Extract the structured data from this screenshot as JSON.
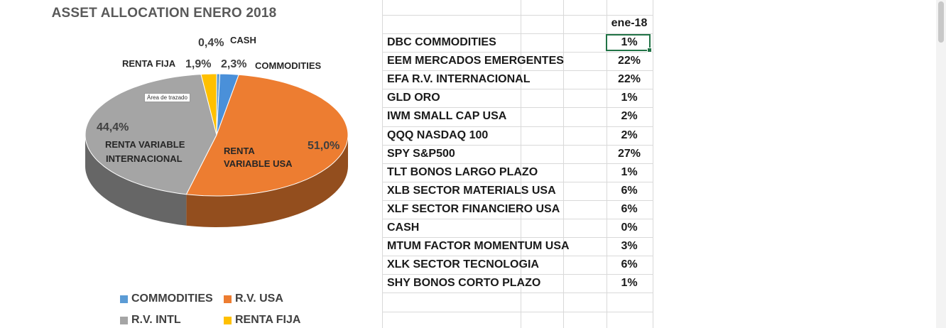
{
  "chart_data": {
    "type": "pie",
    "title": "ASSET ALLOCATION ENERO 2018",
    "slices": [
      {
        "label": "CASH",
        "value": 0.4,
        "display": "0,4%",
        "color": "#5b9bd5"
      },
      {
        "label": "COMMODITIES",
        "value": 2.3,
        "display": "2,3%",
        "color": "#4a90d9"
      },
      {
        "label": "RENTA VARIABLE USA",
        "value": 51.0,
        "display": "51,0%",
        "color": "#ed7d31"
      },
      {
        "label": "RENTA VARIABLE INTERNACIONAL",
        "value": 44.4,
        "display": "44,4%",
        "color": "#a5a5a5"
      },
      {
        "label": "RENTA FIJA",
        "value": 1.9,
        "display": "1,9%",
        "color": "#ffc000"
      }
    ],
    "slice_labels": {
      "cash": "CASH",
      "commodities": "COMMODITIES",
      "rv_usa_1": "RENTA",
      "rv_usa_2": "VARIABLE USA",
      "rv_intl_1": "RENTA VARIABLE",
      "rv_intl_2": "INTERNACIONAL",
      "renta_fija": "RENTA FIJA"
    },
    "legend": [
      {
        "name": "COMMODITIES",
        "color": "#5b9bd5"
      },
      {
        "name": "R.V. USA",
        "color": "#ed7d31"
      },
      {
        "name": "R.V. INTL",
        "color": "#a5a5a5"
      },
      {
        "name": "RENTA FIJA",
        "color": "#ffc000"
      }
    ],
    "legend_position": "bottom",
    "style": "3d-pie"
  },
  "tooltip": "Área de trazado",
  "sheet": {
    "column_header": "ene-18",
    "rows": [
      {
        "label": "DBC COMMODITIES",
        "value": "1%"
      },
      {
        "label": "EEM MERCADOS EMERGENTES",
        "value": "22%"
      },
      {
        "label": "EFA R.V. INTERNACIONAL",
        "value": "22%"
      },
      {
        "label": "GLD ORO",
        "value": "1%"
      },
      {
        "label": "IWM SMALL CAP USA",
        "value": "2%"
      },
      {
        "label": "QQQ NASDAQ 100",
        "value": "2%"
      },
      {
        "label": "SPY  S&P500",
        "value": "27%"
      },
      {
        "label": "TLT BONOS LARGO PLAZO",
        "value": "1%"
      },
      {
        "label": "XLB SECTOR MATERIALS USA",
        "value": "6%"
      },
      {
        "label": "XLF SECTOR FINANCIERO USA",
        "value": "6%"
      },
      {
        "label": "CASH",
        "value": "0%"
      },
      {
        "label": "MTUM FACTOR MOMENTUM USA",
        "value": "3%"
      },
      {
        "label": "XLK SECTOR TECNOLOGIA",
        "value": "6%"
      },
      {
        "label": "SHY BONOS CORTO PLAZO",
        "value": "1%"
      }
    ]
  }
}
